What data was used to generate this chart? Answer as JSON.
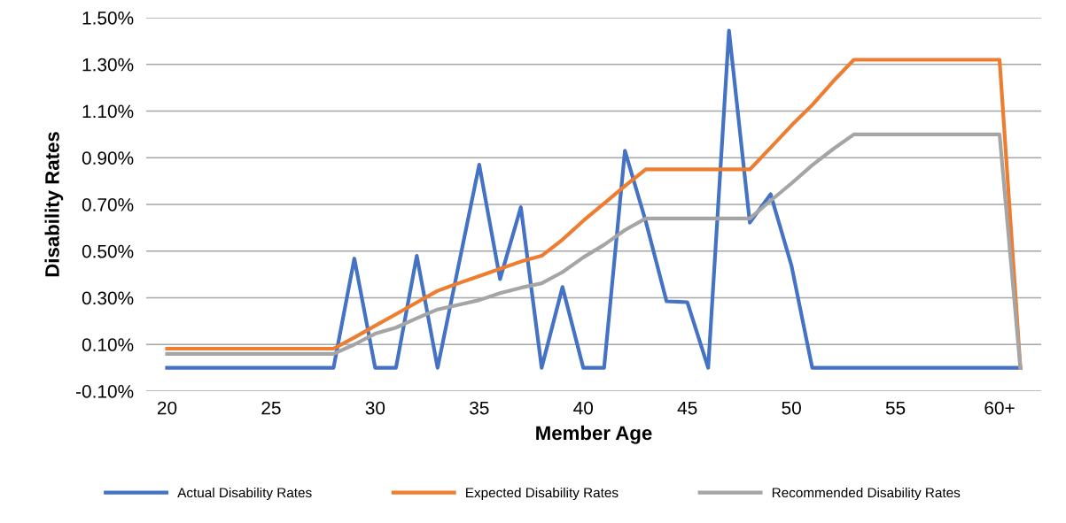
{
  "chart_data": {
    "type": "line",
    "xlabel": "Member Age",
    "ylabel": "Disability Rates",
    "categories": [
      "20",
      null,
      null,
      null,
      null,
      "25",
      null,
      null,
      null,
      null,
      "30",
      null,
      null,
      null,
      null,
      "35",
      null,
      null,
      null,
      null,
      "40",
      null,
      null,
      null,
      null,
      "45",
      null,
      null,
      null,
      null,
      "50",
      null,
      null,
      null,
      null,
      "55",
      null,
      null,
      null,
      null,
      "60+",
      null
    ],
    "series": [
      {
        "name": "Actual Disability Rates",
        "color": "#4472c4",
        "values": [
          0,
          0,
          0,
          0,
          0,
          0,
          0,
          0,
          0,
          0.468,
          0,
          0,
          0.48,
          0,
          0.435,
          0.87,
          0.38,
          0.688,
          0,
          0.346,
          0,
          0,
          0.93,
          0.628,
          0.285,
          0.281,
          0,
          1.445,
          0.622,
          0.744,
          0.439,
          0,
          0,
          0,
          0,
          0,
          0,
          0,
          0,
          0,
          0,
          0
        ]
      },
      {
        "name": "Expected Disability Rates",
        "color": "#ed7d31",
        "values": [
          0.082,
          0.082,
          0.082,
          0.082,
          0.082,
          0.082,
          0.082,
          0.082,
          0.082,
          0.13,
          0.18,
          0.23,
          0.28,
          0.33,
          0.362,
          0.393,
          0.424,
          0.455,
          0.48,
          0.549,
          0.63,
          0.704,
          0.779,
          0.85,
          0.85,
          0.85,
          0.85,
          0.85,
          0.85,
          0.943,
          1.038,
          1.126,
          1.227,
          1.32,
          1.32,
          1.32,
          1.32,
          1.32,
          1.32,
          1.32,
          1.32,
          0
        ]
      },
      {
        "name": "Recommended Disability Rates",
        "color": "#a5a5a5",
        "values": [
          0.06,
          0.06,
          0.06,
          0.06,
          0.06,
          0.06,
          0.06,
          0.06,
          0.06,
          0.1,
          0.146,
          0.172,
          0.212,
          0.25,
          0.27,
          0.29,
          0.32,
          0.343,
          0.362,
          0.41,
          0.473,
          0.527,
          0.59,
          0.64,
          0.64,
          0.64,
          0.64,
          0.64,
          0.64,
          0.716,
          0.79,
          0.868,
          0.937,
          1.0,
          1.0,
          1.0,
          1.0,
          1.0,
          1.0,
          1.0,
          1.0,
          0
        ]
      }
    ],
    "ylim": [
      -0.1,
      1.5
    ],
    "yticks": [
      {
        "value": -0.1,
        "label": "-0.10%"
      },
      {
        "value": 0.1,
        "label": "0.10%"
      },
      {
        "value": 0.3,
        "label": "0.30%"
      },
      {
        "value": 0.5,
        "label": "0.50%"
      },
      {
        "value": 0.7,
        "label": "0.70%"
      },
      {
        "value": 0.9,
        "label": "0.90%"
      },
      {
        "value": 1.1,
        "label": "1.10%"
      },
      {
        "value": 1.3,
        "label": "1.30%"
      },
      {
        "value": 1.5,
        "label": "1.50%"
      }
    ],
    "grid": "y",
    "legend": "bottom",
    "marker": "none",
    "line_style": "solid"
  }
}
